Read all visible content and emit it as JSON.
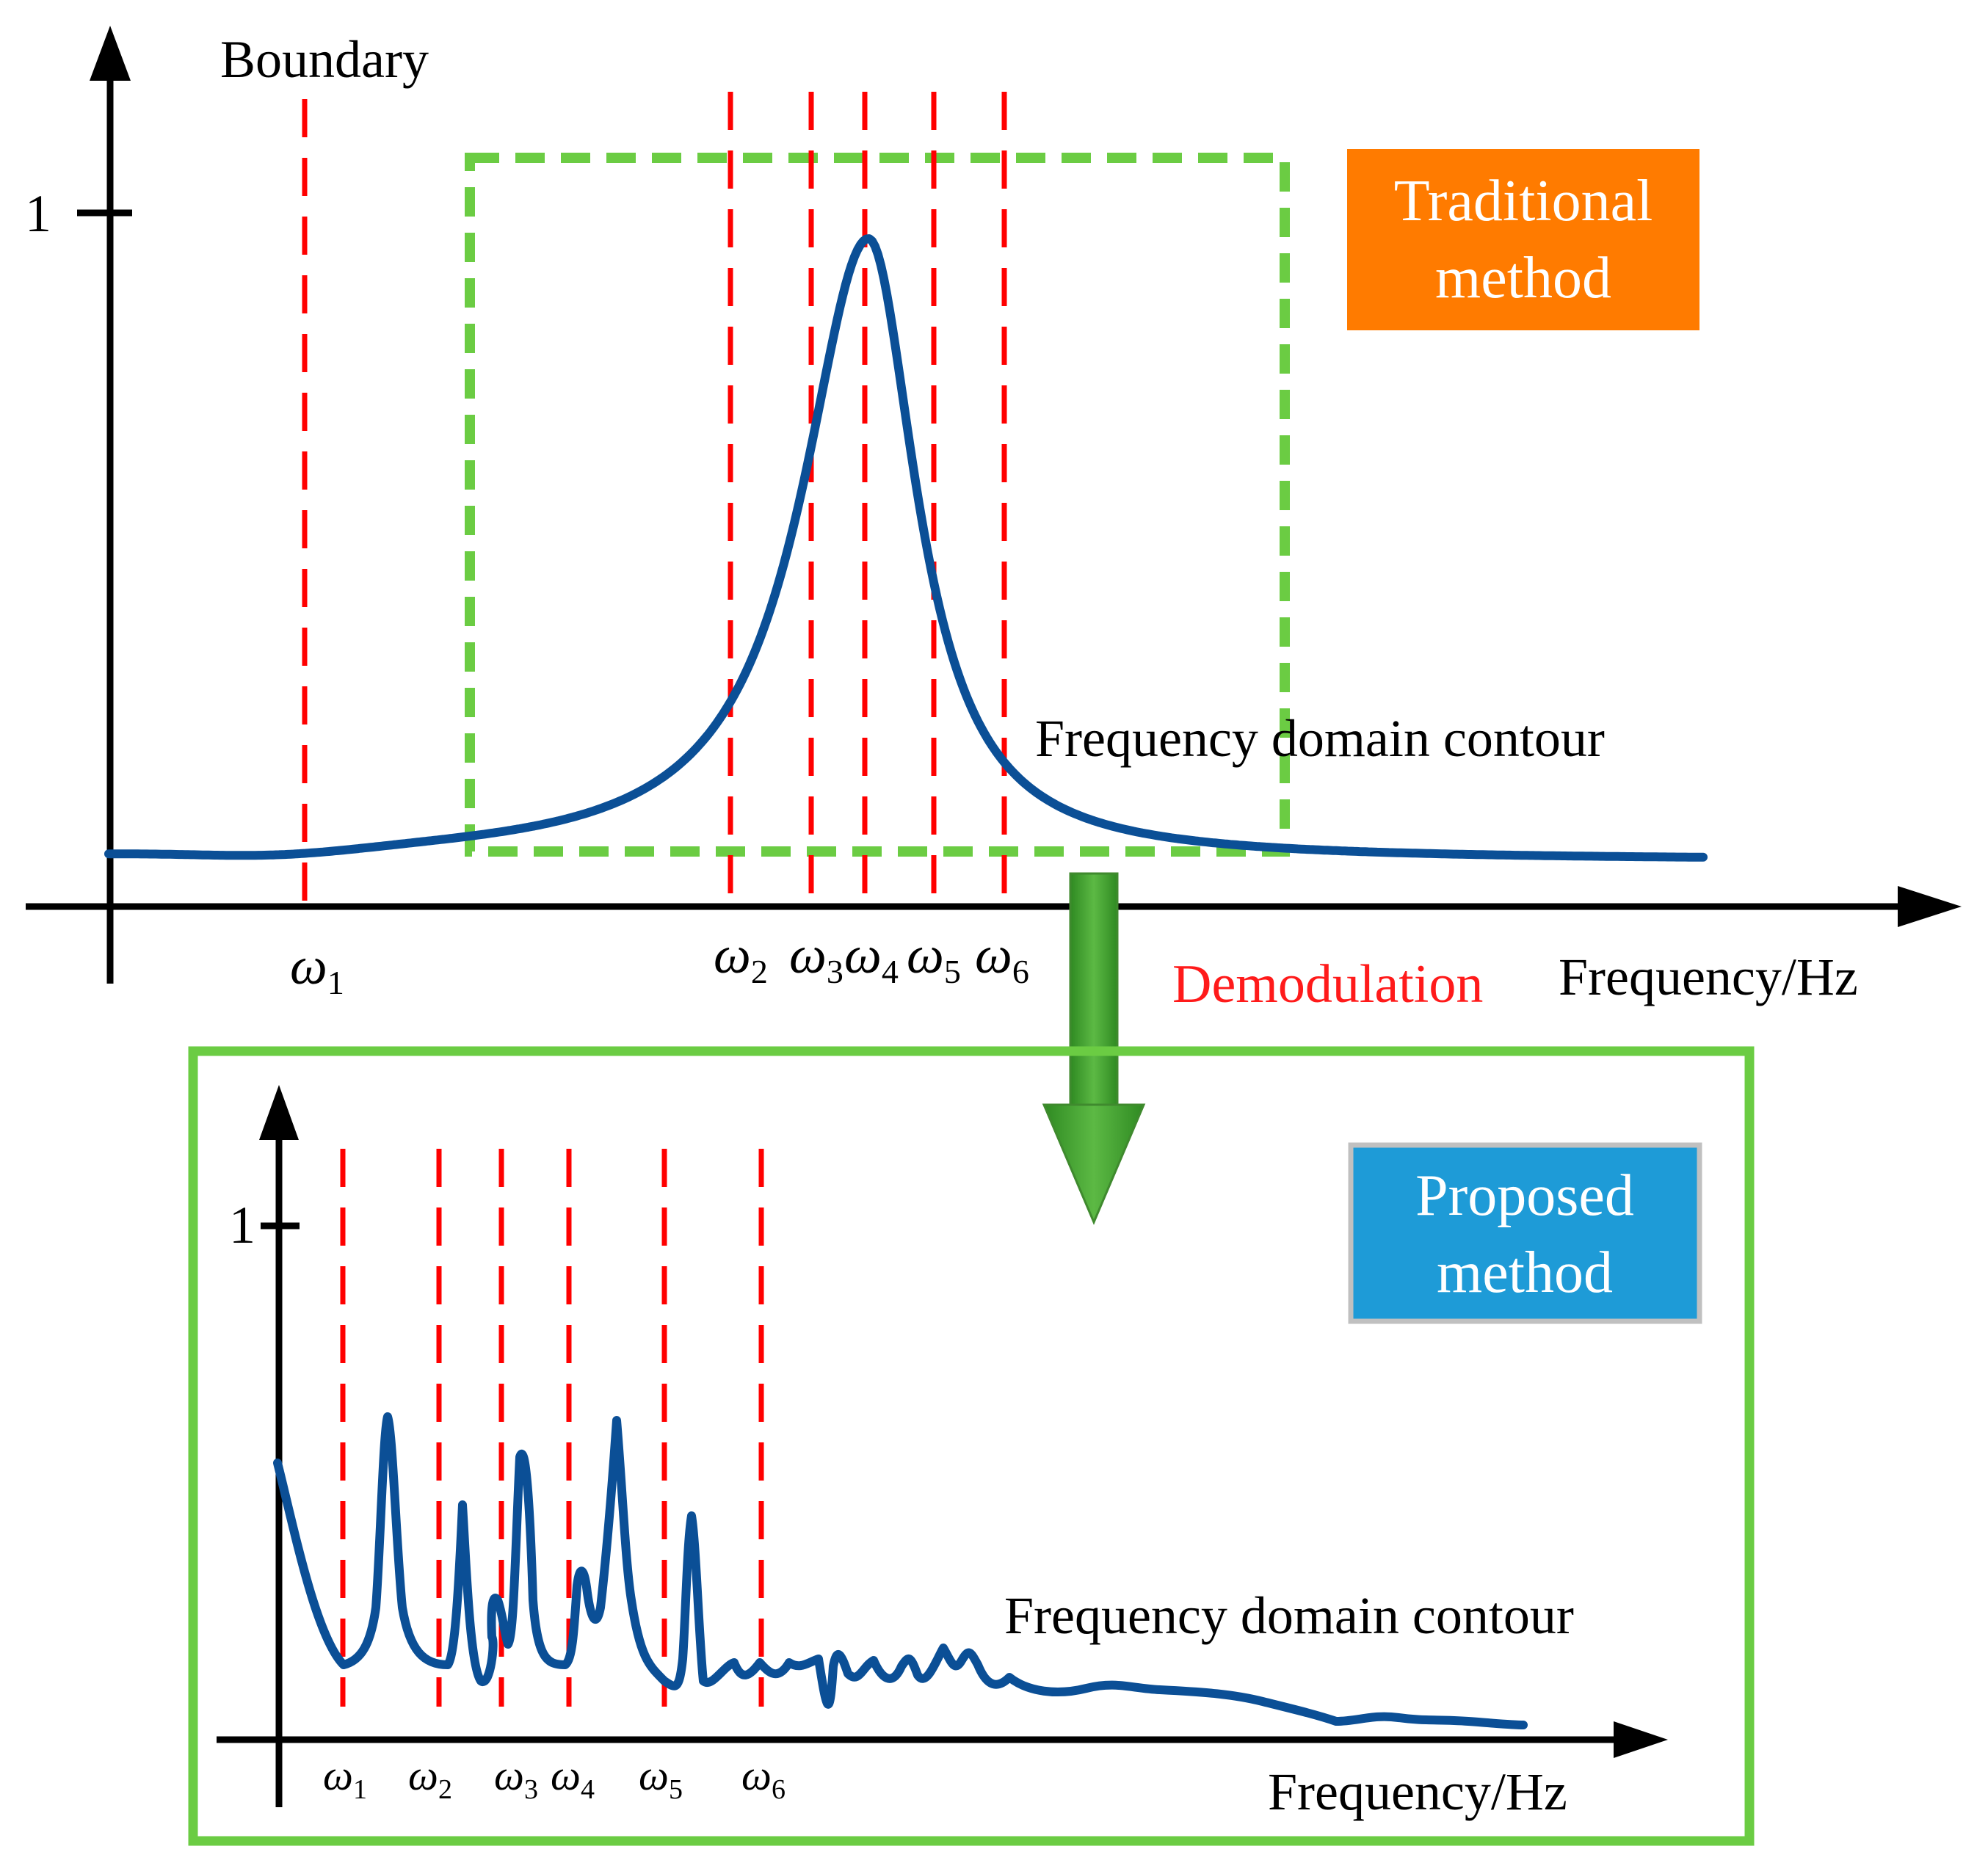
{
  "top_panel": {
    "y_axis_label": "Boundary",
    "y_tick_label": "1",
    "x_axis_label": "Frequency/Hz",
    "curve_label": "Frequency domain contour",
    "omega_symbol": "ω",
    "omega_subscripts": [
      "1",
      "2",
      "3",
      "4",
      "5",
      "6"
    ],
    "badge": {
      "line1": "Traditional",
      "line2": "method",
      "color": "#ff7b00"
    },
    "highlight_box_color": "#6bcc43"
  },
  "arrow": {
    "label": "Demodulation",
    "label_color": "#ff1a1a",
    "color": "#3f9a2e"
  },
  "bottom_panel": {
    "y_tick_label": "1",
    "x_axis_label": "Frequency/Hz",
    "curve_label": "Frequency domain contour",
    "omega_symbol": "ω",
    "omega_subscripts": [
      "1",
      "2",
      "3",
      "4",
      "5",
      "6"
    ],
    "badge": {
      "line1": "Proposed",
      "line2": "method",
      "color": "#1e9bd7"
    },
    "frame_color": "#6bcc43"
  },
  "colors": {
    "curve": "#0b4f96",
    "marker_lines": "#ff0000"
  }
}
